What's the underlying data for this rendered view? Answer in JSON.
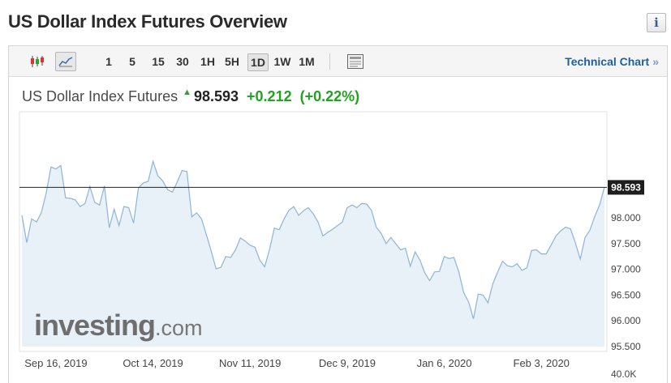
{
  "page": {
    "title": "US Dollar Index Futures Overview",
    "info_icon": "i"
  },
  "toolbar": {
    "periods": [
      "1",
      "5",
      "15",
      "30",
      "1H",
      "5H",
      "1D",
      "1W",
      "1M"
    ],
    "active_period": "1D",
    "technical_chart_label": "Technical Chart",
    "technical_chart_arrow": "»"
  },
  "quote": {
    "name": "US Dollar Index Futures",
    "last": "98.593",
    "change": "+0.212",
    "change_pct": "(+0.22%)",
    "direction_icon": "up-arrow-icon",
    "positive_color": "#21a221"
  },
  "watermark": {
    "brand": "investing",
    "suffix": ".com"
  },
  "chart_data": {
    "type": "area",
    "line_color": "#8db4d9",
    "fill_color": "#e8f0f8",
    "ylim": [
      95.5,
      100.0
    ],
    "y_ticks": [
      "98.000",
      "97.500",
      "97.000",
      "96.500",
      "96.000",
      "95.500"
    ],
    "y_bottom_label": "40.0K",
    "x_labels": [
      "Sep 16, 2019",
      "Oct 14, 2019",
      "Nov 11, 2019",
      "Dec 9, 2019",
      "Jan 6, 2020",
      "Feb 3, 2020"
    ],
    "x_label_index": [
      7,
      27,
      47,
      67,
      87,
      107
    ],
    "current_value": 98.593,
    "current_label": "98.593",
    "values": [
      98.05,
      97.52,
      97.98,
      97.92,
      98.1,
      98.48,
      98.99,
      98.95,
      99.02,
      98.39,
      98.38,
      98.35,
      98.22,
      98.28,
      98.61,
      98.3,
      98.25,
      98.62,
      97.81,
      98.17,
      97.85,
      98.22,
      98.2,
      97.9,
      98.58,
      98.68,
      98.71,
      99.1,
      98.82,
      98.72,
      98.55,
      98.5,
      98.7,
      98.92,
      98.9,
      98.02,
      98.1,
      97.98,
      97.67,
      97.35,
      97.01,
      97.04,
      97.25,
      97.23,
      97.38,
      97.61,
      97.55,
      97.47,
      97.43,
      97.18,
      97.05,
      97.38,
      97.8,
      97.77,
      97.98,
      98.15,
      98.22,
      98.05,
      98.14,
      98.2,
      98.08,
      97.92,
      97.65,
      97.72,
      97.78,
      97.85,
      97.92,
      98.2,
      98.25,
      98.2,
      98.28,
      98.27,
      98.15,
      97.82,
      97.7,
      97.5,
      97.62,
      97.5,
      97.38,
      97.41,
      97.06,
      97.34,
      97.18,
      96.93,
      96.78,
      96.95,
      96.96,
      97.25,
      97.21,
      97.23,
      96.95,
      96.55,
      96.37,
      96.04,
      96.52,
      96.5,
      96.35,
      96.72,
      96.95,
      97.16,
      97.07,
      97.05,
      97.11,
      96.98,
      97.03,
      97.37,
      97.38,
      97.3,
      97.3,
      97.47,
      97.65,
      97.75,
      97.82,
      97.79,
      97.52,
      97.2,
      97.62,
      97.76,
      98.03,
      98.25,
      98.6
    ]
  }
}
